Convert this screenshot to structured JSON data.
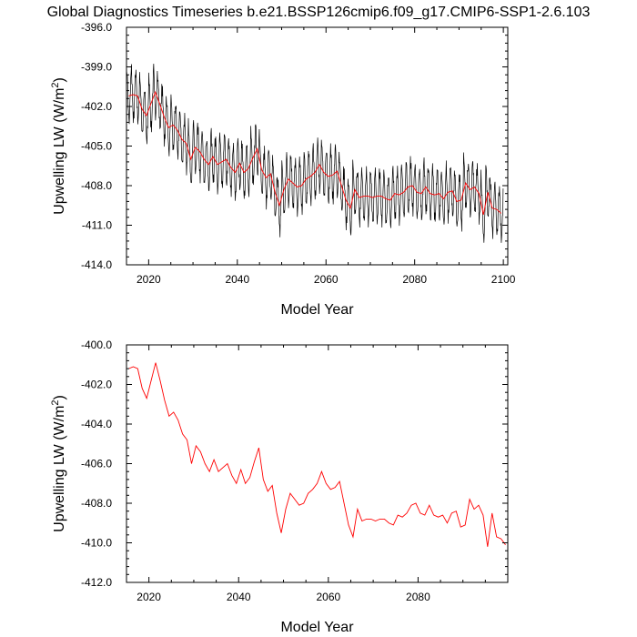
{
  "title": "Global Diagnostics Timeseries b.e21.BSSP126cmip6.f09_g17.CMIP6-SSP1-2.6.103",
  "chart_data": [
    {
      "type": "line",
      "xlabel": "Model Year",
      "ylabel_main": "Upwelling LW (W/m",
      "ylabel_sup": "2",
      "ylabel_tail": ")",
      "xlim": [
        2015,
        2101
      ],
      "ylim": [
        -414.0,
        -396.0
      ],
      "xticks": [
        2020,
        2040,
        2060,
        2080,
        2100
      ],
      "yticks": [
        -414.0,
        -411.0,
        -408.0,
        -405.0,
        -402.0,
        -399.0,
        -396.0
      ],
      "ytick_labels": [
        "-414.0",
        "-411.0",
        "-408.0",
        "-405.0",
        "-402.0",
        "-399.0",
        "-396.0"
      ],
      "grid": false,
      "colors": {
        "monthly": "#000000",
        "annual": "#ff0000"
      },
      "monthly_seasonal_amplitude": 1.9,
      "series": [
        {
          "kind": "annual_mean",
          "x_start": 2015.5,
          "x_step": 1,
          "values": [
            -401.2,
            -401.1,
            -401.2,
            -402.2,
            -402.7,
            -401.8,
            -400.9,
            -401.8,
            -402.8,
            -403.6,
            -403.4,
            -403.8,
            -404.5,
            -404.8,
            -406.0,
            -405.1,
            -405.4,
            -406.0,
            -406.4,
            -405.8,
            -406.4,
            -406.2,
            -406.0,
            -406.6,
            -407.0,
            -406.3,
            -407.0,
            -406.7,
            -405.9,
            -405.2,
            -406.8,
            -407.4,
            -407.1,
            -408.5,
            -409.5,
            -408.3,
            -407.5,
            -407.8,
            -408.1,
            -408.0,
            -407.5,
            -407.3,
            -407.0,
            -406.4,
            -407.0,
            -407.3,
            -407.2,
            -406.9,
            -408.0,
            -409.1,
            -409.7,
            -408.3,
            -408.9,
            -408.8,
            -408.8,
            -408.9,
            -408.8,
            -408.8,
            -409.0,
            -409.1,
            -408.6,
            -408.7,
            -408.5,
            -408.1,
            -408.0,
            -408.5,
            -408.6,
            -408.1,
            -408.6,
            -408.7,
            -408.6,
            -409.0,
            -408.5,
            -408.4,
            -409.2,
            -409.1,
            -407.8,
            -408.3,
            -408.1,
            -408.6,
            -410.2,
            -408.5,
            -409.7,
            -409.8,
            -410.1
          ]
        }
      ]
    },
    {
      "type": "line",
      "xlabel": "Model Year",
      "ylabel_main": "Upwelling LW (W/m",
      "ylabel_sup": "2",
      "ylabel_tail": ")",
      "xlim": [
        2015,
        2100
      ],
      "ylim": [
        -412.0,
        -400.0
      ],
      "xticks": [
        2020,
        2040,
        2060,
        2080
      ],
      "yticks": [
        -412.0,
        -410.0,
        -408.0,
        -406.0,
        -404.0,
        -402.0,
        -400.0
      ],
      "ytick_labels": [
        "-412.0",
        "-410.0",
        "-408.0",
        "-406.0",
        "-404.0",
        "-402.0",
        "-400.0"
      ],
      "grid": false,
      "colors": {
        "annual": "#ff0000"
      },
      "series": [
        {
          "kind": "annual_mean",
          "x_start": 2015.5,
          "x_step": 1,
          "values": [
            -401.2,
            -401.1,
            -401.2,
            -402.2,
            -402.7,
            -401.8,
            -400.9,
            -401.8,
            -402.8,
            -403.6,
            -403.4,
            -403.8,
            -404.5,
            -404.8,
            -406.0,
            -405.1,
            -405.4,
            -406.0,
            -406.4,
            -405.8,
            -406.4,
            -406.2,
            -406.0,
            -406.6,
            -407.0,
            -406.3,
            -407.0,
            -406.7,
            -405.9,
            -405.2,
            -406.8,
            -407.4,
            -407.1,
            -408.5,
            -409.5,
            -408.3,
            -407.5,
            -407.8,
            -408.1,
            -408.0,
            -407.5,
            -407.3,
            -407.0,
            -406.4,
            -407.0,
            -407.3,
            -407.2,
            -406.9,
            -408.0,
            -409.1,
            -409.7,
            -408.3,
            -408.9,
            -408.8,
            -408.8,
            -408.9,
            -408.8,
            -408.8,
            -409.0,
            -409.1,
            -408.6,
            -408.7,
            -408.5,
            -408.1,
            -408.0,
            -408.5,
            -408.6,
            -408.1,
            -408.6,
            -408.7,
            -408.6,
            -409.0,
            -408.5,
            -408.4,
            -409.2,
            -409.1,
            -407.8,
            -408.3,
            -408.1,
            -408.6,
            -410.2,
            -408.5,
            -409.7,
            -409.8,
            -410.1
          ]
        }
      ]
    }
  ]
}
